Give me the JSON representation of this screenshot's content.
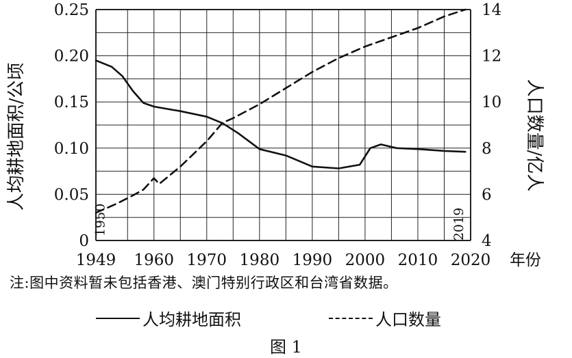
{
  "chart_data": {
    "type": "line",
    "x_start": 1949,
    "x_end": 2020,
    "xticks": [
      1949,
      1960,
      1970,
      1980,
      1990,
      2000,
      2010,
      2020
    ],
    "xunit": "年份",
    "y_left": {
      "label": "人均耕地面积/公顷",
      "range": [
        0,
        0.25
      ],
      "ticks": [
        "0",
        "0.05",
        "0.10",
        "0.15",
        "0.20",
        "0.25"
      ]
    },
    "y_right": {
      "label": "人口数量/亿人",
      "range": [
        4,
        14
      ],
      "ticks": [
        "4",
        "6",
        "8",
        "10",
        "12",
        "14"
      ]
    },
    "grid": true,
    "annotations": [
      "1950",
      "2019"
    ],
    "series": [
      {
        "name": "人均耕地面积",
        "axis": "left",
        "style": "solid",
        "x": [
          1949,
          1952,
          1954,
          1956,
          1958,
          1960,
          1965,
          1970,
          1973,
          1976,
          1980,
          1985,
          1990,
          1995,
          1999,
          2001,
          2003,
          2006,
          2010,
          2015,
          2019
        ],
        "values": [
          0.195,
          0.188,
          0.178,
          0.162,
          0.149,
          0.145,
          0.14,
          0.134,
          0.127,
          0.116,
          0.099,
          0.092,
          0.08,
          0.078,
          0.082,
          0.1,
          0.104,
          0.1,
          0.099,
          0.097,
          0.096
        ]
      },
      {
        "name": "人口数量",
        "axis": "right",
        "style": "dashed",
        "x": [
          1949,
          1953,
          1956,
          1958,
          1960,
          1961,
          1965,
          1970,
          1973,
          1975,
          1980,
          1985,
          1990,
          1995,
          2000,
          2005,
          2010,
          2015,
          2019
        ],
        "values": [
          5.2,
          5.6,
          5.95,
          6.2,
          6.7,
          6.45,
          7.2,
          8.3,
          9.1,
          9.3,
          9.9,
          10.6,
          11.3,
          11.9,
          12.4,
          12.8,
          13.2,
          13.7,
          14.0
        ]
      }
    ],
    "note": "注:图中资料暂未包括香港、澳门特别行政区和台湾省数据。",
    "caption": "图 1"
  }
}
